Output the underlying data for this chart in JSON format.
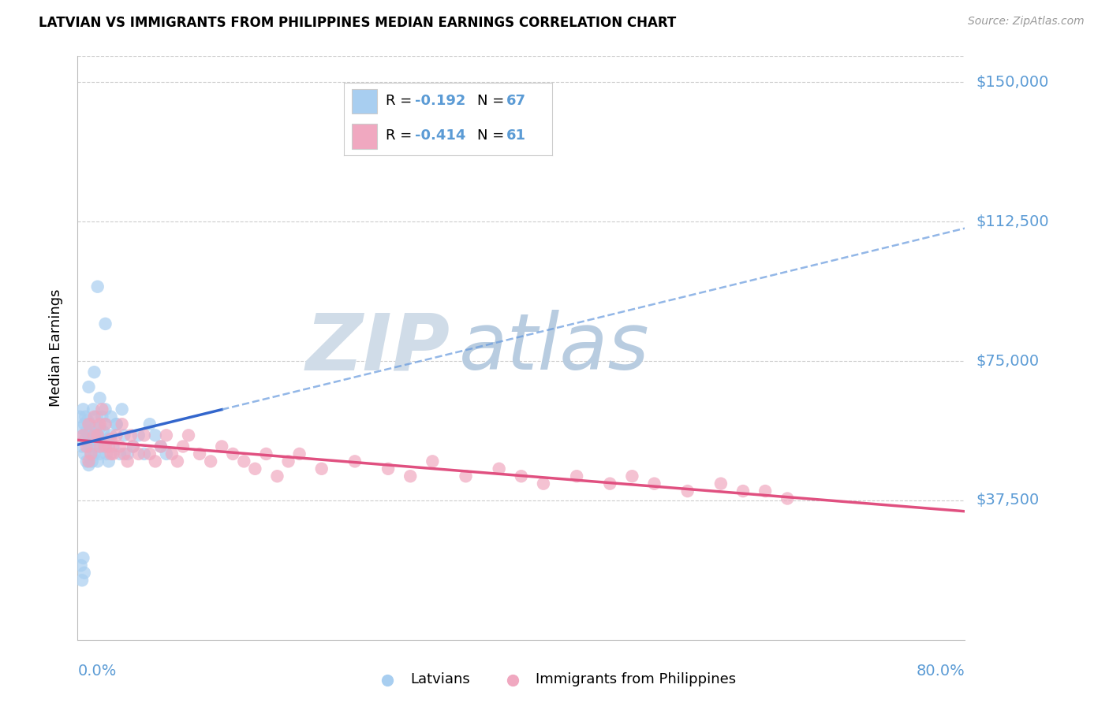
{
  "title": "LATVIAN VS IMMIGRANTS FROM PHILIPPINES MEDIAN EARNINGS CORRELATION CHART",
  "source": "Source: ZipAtlas.com",
  "ylabel": "Median Earnings",
  "ytick_values": [
    37500,
    75000,
    112500,
    150000
  ],
  "ytick_labels": [
    "$37,500",
    "$75,000",
    "$112,500",
    "$150,000"
  ],
  "ymin": 0,
  "ymax": 157000,
  "xmin": 0.0,
  "xmax": 0.8,
  "r_latvian": "-0.192",
  "n_latvian": "67",
  "r_phil": "-0.414",
  "n_phil": "61",
  "color_latvian_fill": "#A8CEF0",
  "color_latvian_line": "#3366CC",
  "color_latvian_line_dashed": "#6699DD",
  "color_phil_fill": "#F0A8C0",
  "color_phil_line": "#E05080",
  "color_axis_text": "#5B9BD5",
  "color_grid": "#CCCCCC",
  "legend_label_latvian": "Latvians",
  "legend_label_phil": "Immigrants from Philippines",
  "watermark_zip_color": "#C8D8E8",
  "watermark_atlas_color": "#A0C0D8"
}
